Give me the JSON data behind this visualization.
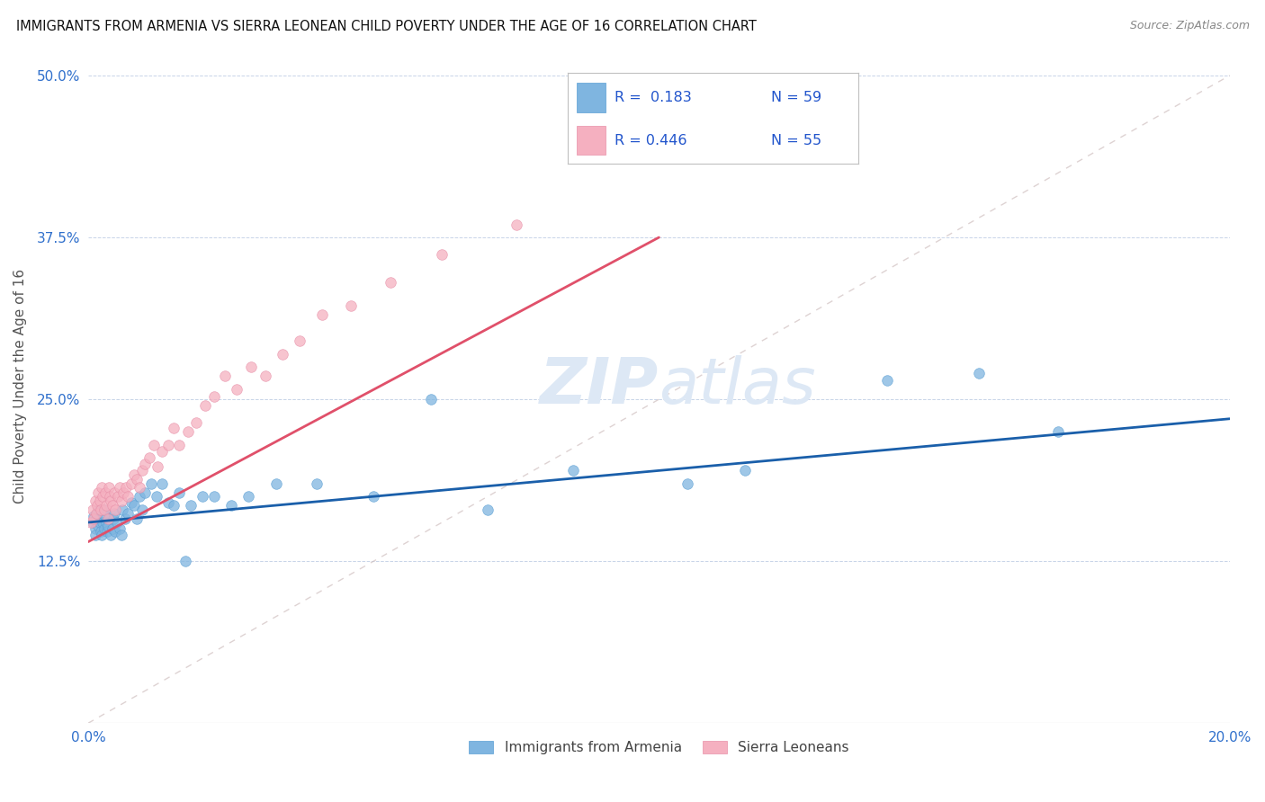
{
  "title": "IMMIGRANTS FROM ARMENIA VS SIERRA LEONEAN CHILD POVERTY UNDER THE AGE OF 16 CORRELATION CHART",
  "source": "Source: ZipAtlas.com",
  "ylabel": "Child Poverty Under the Age of 16",
  "xlim": [
    0.0,
    0.2
  ],
  "ylim": [
    0.0,
    0.52
  ],
  "xticks": [
    0.0,
    0.05,
    0.1,
    0.15,
    0.2
  ],
  "xtick_labels": [
    "0.0%",
    "",
    "",
    "",
    "20.0%"
  ],
  "yticks": [
    0.0,
    0.125,
    0.25,
    0.375,
    0.5
  ],
  "ytick_labels": [
    "",
    "12.5%",
    "25.0%",
    "37.5%",
    "50.0%"
  ],
  "armenia_color": "#7fb5e0",
  "armenia_edge_color": "#5a9fd4",
  "sierra_color": "#f5b0c0",
  "sierra_edge_color": "#e890a8",
  "armenia_line_color": "#1a5faa",
  "sierra_line_color": "#e0506a",
  "diagonal_color": "#d0c0c0",
  "watermark_color": "#dde8f5",
  "legend_R1": "R =  0.183",
  "legend_N1": "N = 59",
  "legend_R2": "R = 0.446",
  "legend_N2": "N = 55",
  "armenia_line_x0": 0.0,
  "armenia_line_y0": 0.155,
  "armenia_line_x1": 0.2,
  "armenia_line_y1": 0.235,
  "sierra_line_x0": 0.0,
  "sierra_line_y0": 0.14,
  "sierra_line_x1": 0.1,
  "sierra_line_y1": 0.375,
  "arm_x": [
    0.0008,
    0.001,
    0.0012,
    0.0013,
    0.0015,
    0.0016,
    0.0018,
    0.0019,
    0.002,
    0.0022,
    0.0024,
    0.0025,
    0.0027,
    0.0028,
    0.003,
    0.0032,
    0.0033,
    0.0035,
    0.0037,
    0.004,
    0.0042,
    0.0044,
    0.0046,
    0.0048,
    0.005,
    0.0055,
    0.0058,
    0.006,
    0.0065,
    0.007,
    0.0075,
    0.008,
    0.0085,
    0.009,
    0.0095,
    0.01,
    0.011,
    0.012,
    0.013,
    0.014,
    0.015,
    0.016,
    0.017,
    0.018,
    0.02,
    0.022,
    0.025,
    0.028,
    0.033,
    0.04,
    0.05,
    0.06,
    0.07,
    0.085,
    0.105,
    0.115,
    0.14,
    0.156,
    0.17
  ],
  "arm_y": [
    0.155,
    0.16,
    0.15,
    0.145,
    0.158,
    0.162,
    0.152,
    0.165,
    0.155,
    0.148,
    0.145,
    0.155,
    0.165,
    0.15,
    0.16,
    0.155,
    0.148,
    0.152,
    0.158,
    0.145,
    0.15,
    0.158,
    0.162,
    0.148,
    0.155,
    0.15,
    0.145,
    0.165,
    0.158,
    0.162,
    0.17,
    0.168,
    0.158,
    0.175,
    0.165,
    0.178,
    0.185,
    0.175,
    0.185,
    0.17,
    0.168,
    0.178,
    0.125,
    0.168,
    0.175,
    0.175,
    0.168,
    0.175,
    0.185,
    0.185,
    0.175,
    0.25,
    0.165,
    0.195,
    0.185,
    0.195,
    0.265,
    0.27,
    0.225
  ],
  "sl_x": [
    0.0005,
    0.0008,
    0.001,
    0.0012,
    0.0014,
    0.0016,
    0.0018,
    0.002,
    0.0022,
    0.0024,
    0.0026,
    0.0028,
    0.003,
    0.0032,
    0.0034,
    0.0036,
    0.0038,
    0.004,
    0.0043,
    0.0046,
    0.0048,
    0.0052,
    0.0055,
    0.0058,
    0.0062,
    0.0066,
    0.007,
    0.0075,
    0.008,
    0.0085,
    0.009,
    0.0095,
    0.01,
    0.0108,
    0.0115,
    0.0122,
    0.013,
    0.014,
    0.015,
    0.016,
    0.0175,
    0.019,
    0.0205,
    0.022,
    0.024,
    0.026,
    0.0285,
    0.031,
    0.034,
    0.037,
    0.041,
    0.046,
    0.053,
    0.062,
    0.075
  ],
  "sl_y": [
    0.155,
    0.165,
    0.158,
    0.172,
    0.162,
    0.168,
    0.178,
    0.172,
    0.165,
    0.182,
    0.175,
    0.165,
    0.178,
    0.168,
    0.158,
    0.182,
    0.175,
    0.172,
    0.168,
    0.178,
    0.165,
    0.175,
    0.182,
    0.172,
    0.178,
    0.182,
    0.175,
    0.185,
    0.192,
    0.188,
    0.182,
    0.195,
    0.2,
    0.205,
    0.215,
    0.198,
    0.21,
    0.215,
    0.228,
    0.215,
    0.225,
    0.232,
    0.245,
    0.252,
    0.268,
    0.258,
    0.275,
    0.268,
    0.285,
    0.295,
    0.315,
    0.322,
    0.34,
    0.362,
    0.385
  ]
}
